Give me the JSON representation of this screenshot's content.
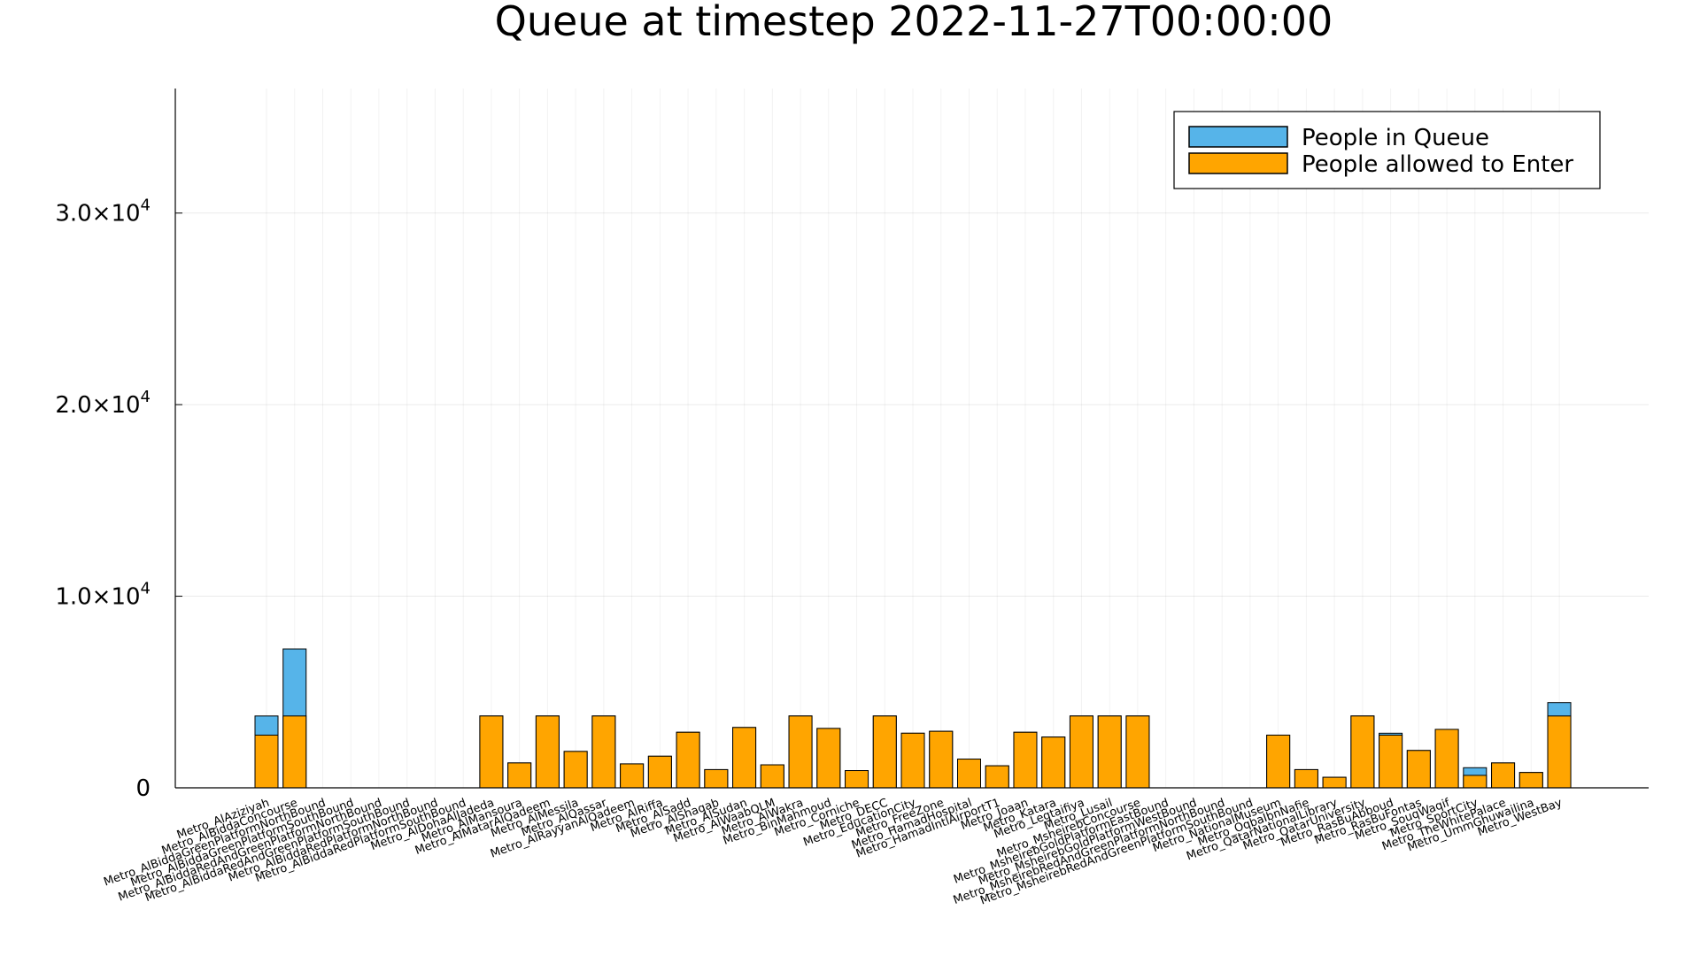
{
  "chart_data": {
    "type": "bar",
    "title": "Queue at timestep 2022-11-27T00:00:00",
    "xlabel": "",
    "ylabel": "",
    "ylim": [
      0,
      36500
    ],
    "grid": true,
    "legend_position": "top-right",
    "y_ticks": [
      {
        "value": 0,
        "mantissa": "0",
        "exponent": ""
      },
      {
        "value": 10000,
        "mantissa": "1.0×10",
        "exponent": "4"
      },
      {
        "value": 20000,
        "mantissa": "2.0×10",
        "exponent": "4"
      },
      {
        "value": 30000,
        "mantissa": "3.0×10",
        "exponent": "4"
      }
    ],
    "categories": [
      "Metro_AlAziziyah",
      "Metro_AlBiddaConcourse",
      "Metro_AlBiddaGreenPlatformNorthBound",
      "Metro_AlBiddaGreenPlatformSouthBound",
      "Metro_AlBiddaRedAndGreenPlatformNorthBound",
      "Metro_AlBiddaRedAndGreenPlatformSouthBound",
      "Metro_AlBiddaRedPlatformNorthBound",
      "Metro_AlBiddaRedPlatformSouthBound",
      "Metro_AlDohaAlJadeda",
      "Metro_AlMansoura",
      "Metro_AlMatarAlQadeem",
      "Metro_AlMessila",
      "Metro_AlQassar",
      "Metro_AlRayyanAlQadeem",
      "Metro_AlRiffa",
      "Metro_AlSadd",
      "Metro_AlShaqab",
      "Metro_AlSudan",
      "Metro_AlWaabQLM",
      "Metro_AlWakra",
      "Metro_BinMahmoud",
      "Metro_Corniche",
      "Metro_DECC",
      "Metro_EducationCity",
      "Metro_FreeZone",
      "Metro_HamadHospital",
      "Metro_HamadIntlAirportT1",
      "Metro_Joaan",
      "Metro_Katara",
      "Metro_Legtaifiya",
      "Metro_Lusail",
      "Metro_MsheirebConcourse",
      "Metro_MsheirebGoldPlatformEastBound",
      "Metro_MsheirebGoldPlatformWestBound",
      "Metro_MsheirebRedAndGreenPlatformNorthBound",
      "Metro_MsheirebRedAndGreenPlatformSouthBound",
      "Metro_NationalMuseum",
      "Metro_OqbaIbnNafie",
      "Metro_QatarNationalLibrary",
      "Metro_QatarUniversity",
      "Metro_RasBuAbboud",
      "Metro_RasBuFontas",
      "Metro_SouqWaqif",
      "Metro_SportCity",
      "Metro_TheWhitePalace",
      "Metro_UmmGhuwailina",
      "Metro_WestBay"
    ],
    "series": [
      {
        "name": "People in Queue",
        "color": "#56b4e9",
        "values": [
          3750,
          7250,
          0,
          0,
          0,
          0,
          0,
          0,
          3750,
          1300,
          3750,
          1900,
          3750,
          1250,
          1650,
          2900,
          950,
          3150,
          1200,
          3750,
          3100,
          900,
          3750,
          2850,
          2950,
          1500,
          1150,
          2900,
          2650,
          3750,
          3750,
          3750,
          0,
          0,
          0,
          0,
          2750,
          950,
          550,
          3750,
          2850,
          1950,
          3050,
          1050,
          1300,
          800,
          4450
        ]
      },
      {
        "name": "People allowed to Enter",
        "color": "#ffa500",
        "values": [
          2750,
          3750,
          0,
          0,
          0,
          0,
          0,
          0,
          3750,
          1300,
          3750,
          1900,
          3750,
          1250,
          1650,
          2900,
          950,
          3150,
          1200,
          3750,
          3100,
          900,
          3750,
          2850,
          2950,
          1500,
          1150,
          2900,
          2650,
          3750,
          3750,
          3750,
          0,
          0,
          0,
          0,
          2750,
          950,
          550,
          3750,
          2750,
          1950,
          3050,
          650,
          1300,
          800,
          3750
        ]
      }
    ]
  }
}
